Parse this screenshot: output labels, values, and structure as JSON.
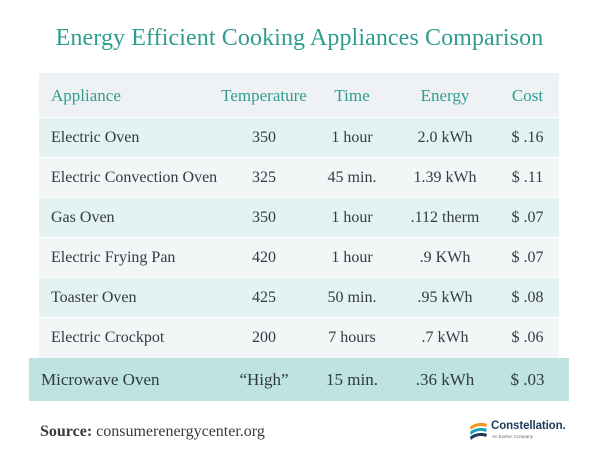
{
  "title": "Energy Efficient Cooking Appliances Comparison",
  "columns": {
    "appliance": "Appliance",
    "temperature": "Temperature",
    "time": "Time",
    "energy": "Energy",
    "cost": "Cost"
  },
  "rows": [
    {
      "appliance": "Electric Oven",
      "temperature": "350",
      "time": "1 hour",
      "energy": "2.0 kWh",
      "cost": "$ .16"
    },
    {
      "appliance": "Electric Convection Oven",
      "temperature": "325",
      "time": "45 min.",
      "energy": "1.39 kWh",
      "cost": "$ .11"
    },
    {
      "appliance": "Gas Oven",
      "temperature": "350",
      "time": "1 hour",
      "energy": ".112 therm",
      "cost": "$ .07"
    },
    {
      "appliance": "Electric Frying Pan",
      "temperature": "420",
      "time": "1 hour",
      "energy": ".9 KWh",
      "cost": "$ .07"
    },
    {
      "appliance": "Toaster Oven",
      "temperature": "425",
      "time": "50 min.",
      "energy": ".95 kWh",
      "cost": "$ .08"
    },
    {
      "appliance": "Electric Crockpot",
      "temperature": "200",
      "time": "7 hours",
      "energy": ".7 kWh",
      "cost": "$ .06"
    }
  ],
  "highlight_row": {
    "appliance": "Microwave Oven",
    "temperature": "“High”",
    "time": "15 min.",
    "energy": ".36 kWh",
    "cost": "$ .03"
  },
  "source": {
    "label": "Source:",
    "value": "consumerenergycenter.org"
  },
  "logo": {
    "name": "Constellation.",
    "tagline": "An Exelon Company"
  },
  "colors": {
    "accent": "#2f9c8f",
    "highlight": "#bfe3e0",
    "row_a": "#e4f3f2",
    "row_b": "#f2f6f7",
    "header_bg": "#eef2f4",
    "text": "#333c40"
  }
}
